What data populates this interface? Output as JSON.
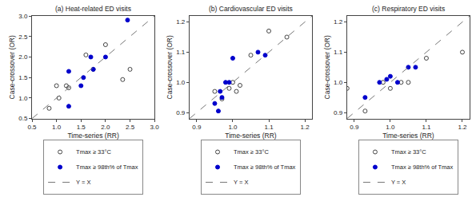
{
  "chart_data": [
    {
      "type": "scatter",
      "title": "(a) Heat-related ED visits",
      "x_label": "Time-series (RR)",
      "y_label": "Case-crossover (OR)",
      "xlim": [
        0.5,
        3.0
      ],
      "ylim": [
        0.5,
        3.0
      ],
      "xticks": [
        0.5,
        {
          "value": 1.0,
          "label": "1.0"
        },
        1.5,
        {
          "value": 2.0,
          "label": "2.0"
        },
        2.5,
        {
          "value": 3.0,
          "label": "3.0"
        }
      ],
      "yticks": [
        0.5,
        {
          "value": 1.0,
          "label": "1.0"
        },
        1.5,
        {
          "value": 2.0,
          "label": "2.0"
        },
        2.5,
        {
          "value": 3.0,
          "label": "3.0"
        }
      ],
      "grid": false,
      "legend": "bottom",
      "series": [
        {
          "name": "Tmax ≥ 33°C",
          "type": "scatter",
          "marker": "circle-open",
          "color": "#444444",
          "x": [
            0.85,
            1.0,
            1.05,
            1.2,
            1.25,
            1.6,
            1.75,
            2.0,
            2.35,
            2.5
          ],
          "values": [
            0.75,
            1.3,
            1.0,
            1.3,
            1.25,
            2.05,
            1.7,
            2.3,
            1.45,
            1.7
          ]
        },
        {
          "name": "Tmax ≥ 98th% of Tmax",
          "type": "scatter",
          "marker": "circle",
          "color": "#0000cc",
          "x": [
            1.25,
            1.25,
            1.5,
            1.55,
            1.7,
            1.75,
            2.0,
            2.45
          ],
          "values": [
            0.8,
            1.65,
            1.3,
            1.5,
            2.0,
            1.7,
            2.0,
            2.9
          ]
        },
        {
          "name": "Y = X",
          "type": "line",
          "line_style": "dashed",
          "color": "#777777",
          "x": [
            0.5,
            3.0
          ],
          "values": [
            0.5,
            3.0
          ]
        }
      ]
    },
    {
      "type": "scatter",
      "title": "(b) Cardiovascular ED visits",
      "x_label": "Time-series (RR)",
      "y_label": "Case-crossover (OR)",
      "xlim": [
        0.88,
        1.22
      ],
      "ylim": [
        0.88,
        1.22
      ],
      "xticks": [
        0.9,
        {
          "value": 1.0,
          "label": "1.0"
        },
        1.1,
        1.2
      ],
      "yticks": [
        0.9,
        {
          "value": 1.0,
          "label": "1.0"
        },
        1.1,
        1.2
      ],
      "grid": false,
      "legend": "bottom",
      "series": [
        {
          "name": "Tmax ≥ 33°C",
          "type": "scatter",
          "marker": "circle-open",
          "color": "#444444",
          "x": [
            0.95,
            0.97,
            0.99,
            1.0,
            1.01,
            1.02,
            1.05,
            1.1,
            1.15
          ],
          "values": [
            0.97,
            0.945,
            0.98,
            1.0,
            0.97,
            0.99,
            1.09,
            1.17,
            1.15
          ]
        },
        {
          "name": "Tmax ≥ 98th% of Tmax",
          "type": "scatter",
          "marker": "circle",
          "color": "#0000cc",
          "x": [
            0.95,
            0.96,
            0.965,
            0.97,
            0.98,
            0.99,
            1.0,
            1.07,
            1.09
          ],
          "values": [
            0.93,
            0.905,
            0.97,
            0.95,
            1.0,
            1.0,
            1.08,
            1.1,
            1.09
          ]
        },
        {
          "name": "Y = X",
          "type": "line",
          "line_style": "dashed",
          "color": "#777777",
          "x": [
            0.88,
            1.22
          ],
          "values": [
            0.88,
            1.22
          ]
        }
      ]
    },
    {
      "type": "scatter",
      "title": "(c) Respiratory ED visits",
      "x_label": "Time-series (RR)",
      "y_label": "Case-crossover (OR)",
      "xlim": [
        0.88,
        1.22
      ],
      "ylim": [
        0.88,
        1.22
      ],
      "xticks": [
        0.9,
        {
          "value": 1.0,
          "label": "1.0"
        },
        1.1,
        1.2
      ],
      "yticks": [
        0.9,
        {
          "value": 1.0,
          "label": "1.0"
        },
        1.1,
        1.2
      ],
      "grid": false,
      "legend": "bottom",
      "series": [
        {
          "name": "Tmax ≥ 33°C",
          "type": "scatter",
          "marker": "circle-open",
          "color": "#444444",
          "x": [
            0.88,
            0.93,
            0.98,
            1.0,
            1.03,
            1.05,
            1.1,
            1.2
          ],
          "values": [
            0.98,
            0.905,
            1.0,
            0.98,
            1.0,
            1.0,
            1.08,
            1.1
          ]
        },
        {
          "name": "Tmax ≥ 98th% of Tmax",
          "type": "scatter",
          "marker": "circle",
          "color": "#0000cc",
          "x": [
            0.93,
            0.97,
            0.99,
            1.0,
            1.02,
            1.05,
            1.07
          ],
          "values": [
            0.95,
            1.0,
            1.01,
            1.02,
            1.0,
            1.05,
            1.05
          ]
        },
        {
          "name": "Y = X",
          "type": "line",
          "line_style": "dashed",
          "color": "#777777",
          "x": [
            0.88,
            1.22
          ],
          "values": [
            0.88,
            1.22
          ]
        }
      ]
    }
  ]
}
